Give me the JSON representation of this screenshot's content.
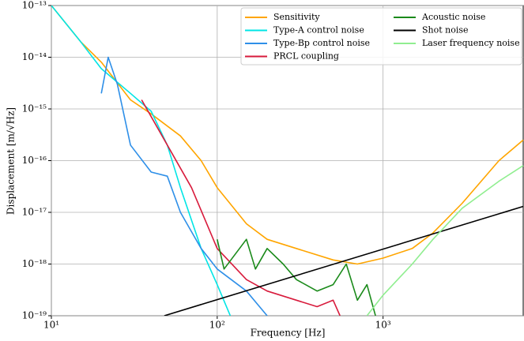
{
  "chart_data": {
    "type": "line",
    "xlabel": "Frequency [Hz]",
    "ylabel": "Displacement [m/√Hz]",
    "xscale": "log",
    "yscale": "log",
    "grid": true,
    "legend": "upper right",
    "xlim": [
      10,
      7000
    ],
    "ylim": [
      1e-19,
      1e-13
    ],
    "xticks": [
      {
        "value": 10,
        "label": "10¹"
      },
      {
        "value": 100,
        "label": "10²"
      },
      {
        "value": 1000,
        "label": "10³"
      }
    ],
    "yticks": [
      {
        "value": 1e-19,
        "label": "10⁻¹⁹"
      },
      {
        "value": 1e-18,
        "label": "10⁻¹⁸"
      },
      {
        "value": 1e-17,
        "label": "10⁻¹⁷"
      },
      {
        "value": 1e-16,
        "label": "10⁻¹⁶"
      },
      {
        "value": 1e-15,
        "label": "10⁻¹⁵"
      },
      {
        "value": 1e-14,
        "label": "10⁻¹⁴"
      },
      {
        "value": 1e-13,
        "label": "10⁻¹³"
      }
    ],
    "series": [
      {
        "name": "Sensitivity",
        "color": "#ffa500",
        "x": [
          10,
          15,
          20,
          30,
          40,
          60,
          80,
          100,
          150,
          200,
          300,
          500,
          700,
          1000,
          1500,
          2000,
          3000,
          5000,
          7000
        ],
        "values": [
          1e-13,
          2e-14,
          8e-15,
          1.5e-15,
          8e-16,
          3e-16,
          1e-16,
          3e-17,
          6e-18,
          3e-18,
          2e-18,
          1.2e-18,
          1e-18,
          1.3e-18,
          2e-18,
          4e-18,
          1.5e-17,
          1e-16,
          2.5e-16
        ]
      },
      {
        "name": "Type-A control noise",
        "color": "#00e5e5",
        "x": [
          10,
          15,
          20,
          30,
          40,
          50,
          60,
          80,
          100,
          120
        ],
        "values": [
          1e-13,
          2e-14,
          6e-15,
          2e-15,
          9e-16,
          2e-16,
          3e-17,
          2e-18,
          4e-19,
          1e-19
        ]
      },
      {
        "name": "Type-Bp control noise",
        "color": "#2e8fe8",
        "x": [
          20,
          22,
          25,
          30,
          40,
          50,
          60,
          80,
          100,
          150,
          200
        ],
        "values": [
          2e-15,
          1e-14,
          3e-15,
          2e-16,
          6e-17,
          5e-17,
          1e-17,
          2e-18,
          8e-19,
          3e-19,
          1e-19
        ]
      },
      {
        "name": "PRCL coupling",
        "color": "#d81b3c",
        "x": [
          35,
          50,
          70,
          100,
          150,
          200,
          300,
          400,
          500,
          550
        ],
        "values": [
          1.5e-15,
          2e-16,
          3e-17,
          2e-18,
          5e-19,
          3e-19,
          2e-19,
          1.5e-19,
          2e-19,
          1e-19
        ]
      },
      {
        "name": "Acoustic noise",
        "color": "#1a8a1a",
        "x": [
          100,
          110,
          150,
          170,
          200,
          250,
          300,
          400,
          500,
          600,
          700,
          800,
          900
        ],
        "values": [
          3e-18,
          8e-19,
          3e-18,
          8e-19,
          2e-18,
          1e-18,
          5e-19,
          3e-19,
          4e-19,
          1e-18,
          2e-19,
          4e-19,
          1e-19
        ]
      },
      {
        "name": "Shot noise",
        "color": "#000000",
        "x": [
          48,
          7000
        ],
        "values": [
          1e-19,
          1.3e-17
        ]
      },
      {
        "name": "Laser frequency noise",
        "color": "#90ee90",
        "x": [
          800,
          1000,
          1500,
          2000,
          3000,
          5000,
          7000
        ],
        "values": [
          1e-19,
          2.5e-19,
          1e-18,
          3e-18,
          1.2e-17,
          4e-17,
          8e-17
        ]
      }
    ]
  }
}
